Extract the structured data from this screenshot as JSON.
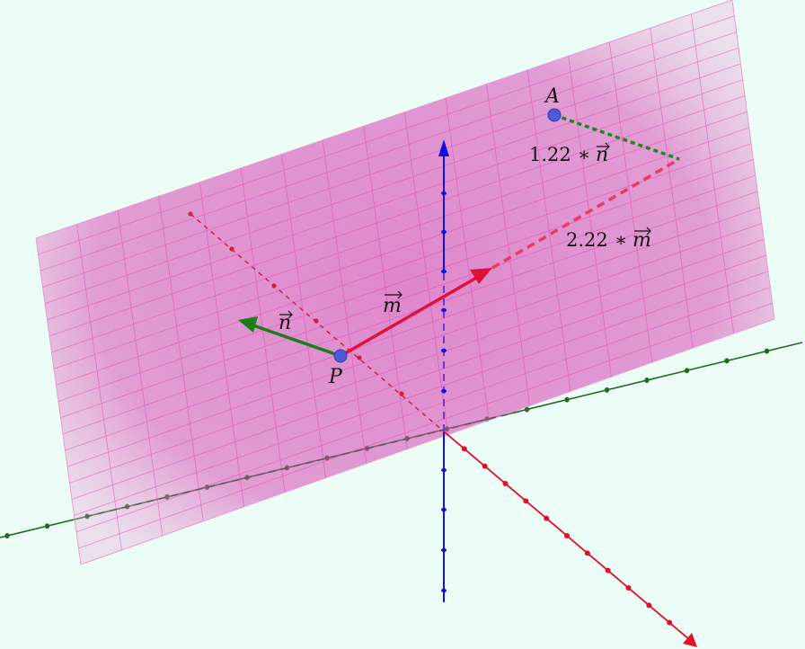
{
  "scene": {
    "background": "#ecfdf7",
    "plane_color": "#d946b8",
    "x_axis_color": "#e0102a",
    "y_axis_color": "#1d6b1d",
    "z_axis_color": "#1010e0",
    "n_vector_color": "#1a7d1a",
    "m_vector_color": "#e0103a",
    "point_color": "#4a5ad8"
  },
  "labels": {
    "point_a": "A",
    "point_p": "P",
    "n_vector": "n",
    "m_vector": "m",
    "n_multiple_coef": "1.22",
    "n_multiple_op": "∗",
    "n_multiple_vec": "n",
    "m_multiple_coef": "2.22",
    "m_multiple_op": "∗",
    "m_multiple_vec": "m"
  }
}
